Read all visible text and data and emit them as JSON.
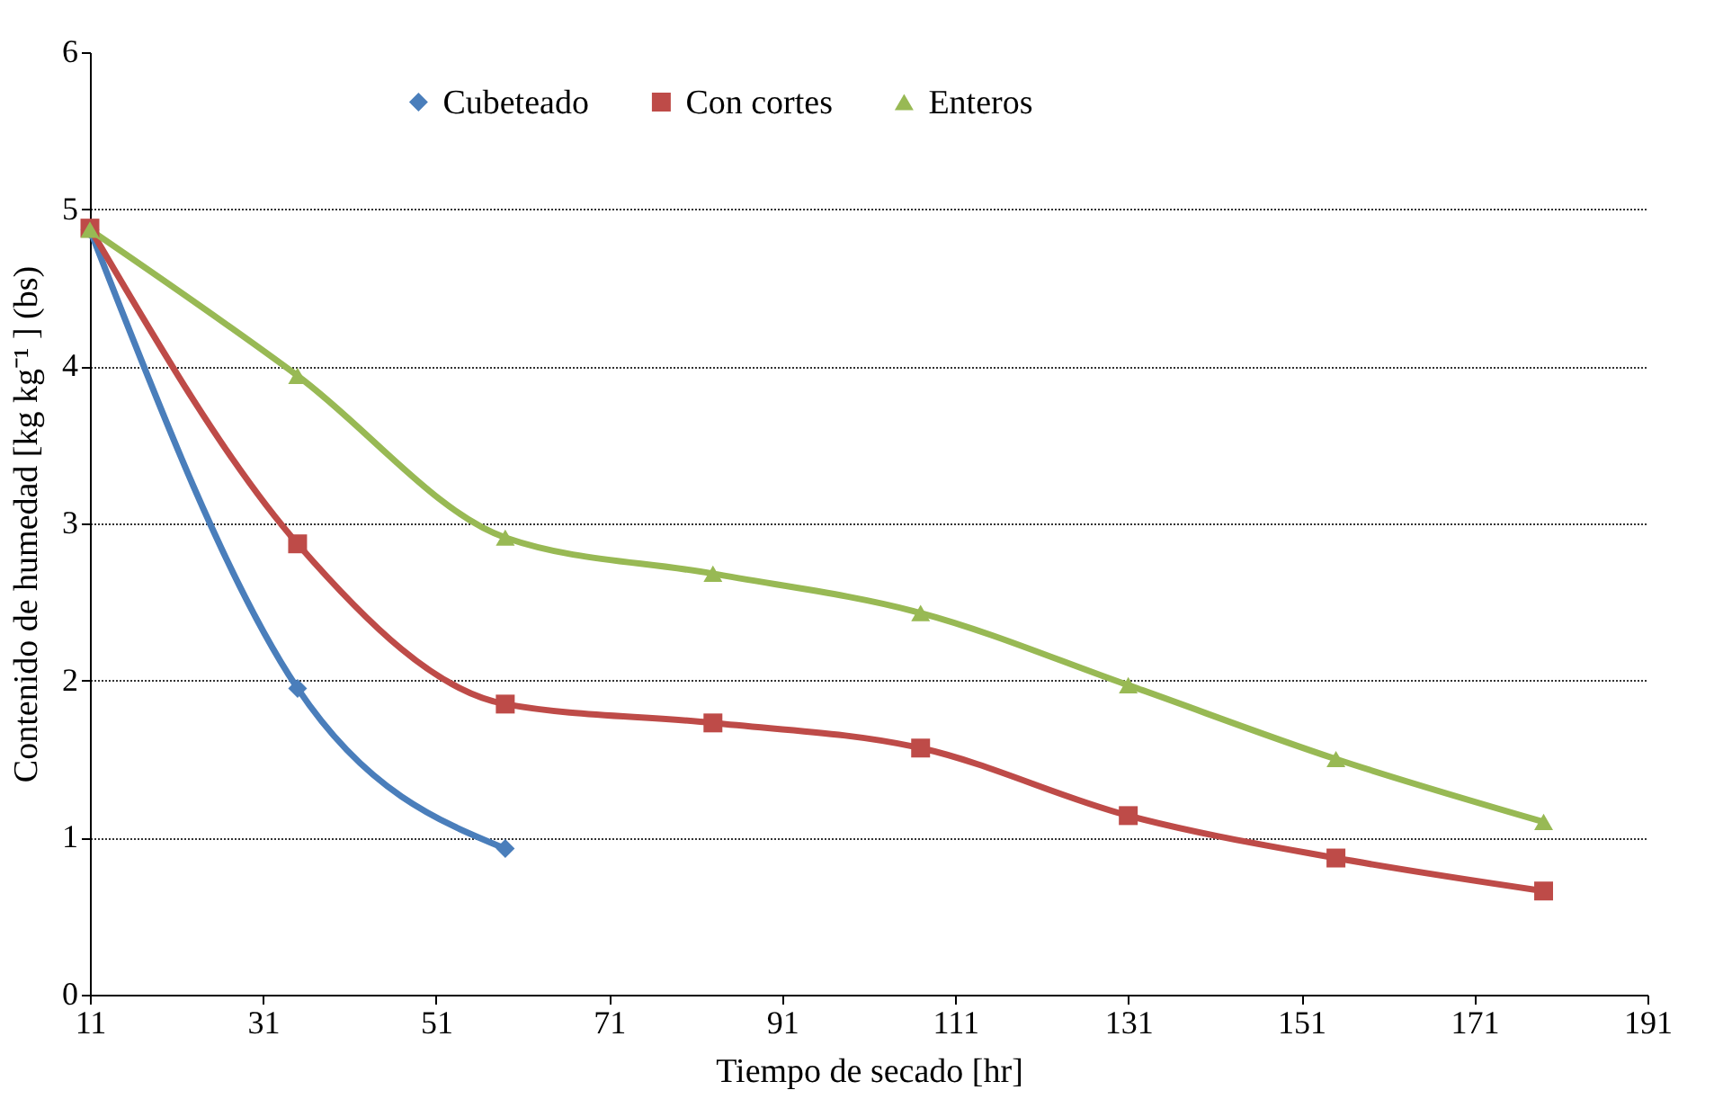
{
  "chart_data": {
    "type": "line",
    "xlabel": "Tiempo de secado [hr]",
    "ylabel": "Contenido de humedad [kg kg⁻¹ ] (bs)",
    "x": [
      11,
      35,
      59,
      83,
      107,
      131,
      155,
      179
    ],
    "series": [
      {
        "name": "Cubeteado",
        "color": "#4a7ebb",
        "marker": "diamond",
        "values": [
          4.87,
          1.95,
          0.93,
          null,
          null,
          null,
          null,
          null
        ]
      },
      {
        "name": "Con cortes",
        "color": "#be4b48",
        "marker": "square",
        "values": [
          4.88,
          2.87,
          1.85,
          1.73,
          1.57,
          1.14,
          0.87,
          0.66
        ]
      },
      {
        "name": "Enteros",
        "color": "#98b954",
        "marker": "triangle",
        "values": [
          4.87,
          3.94,
          2.91,
          2.68,
          2.43,
          1.97,
          1.5,
          1.1
        ]
      }
    ],
    "xlim": [
      11,
      191
    ],
    "xticks": [
      11,
      31,
      51,
      71,
      91,
      111,
      131,
      151,
      171,
      191
    ],
    "ylim": [
      0,
      6
    ],
    "yticks": [
      0,
      1,
      2,
      3,
      4,
      5,
      6
    ],
    "grid": "y",
    "legend": "top",
    "line_style": "solid"
  }
}
